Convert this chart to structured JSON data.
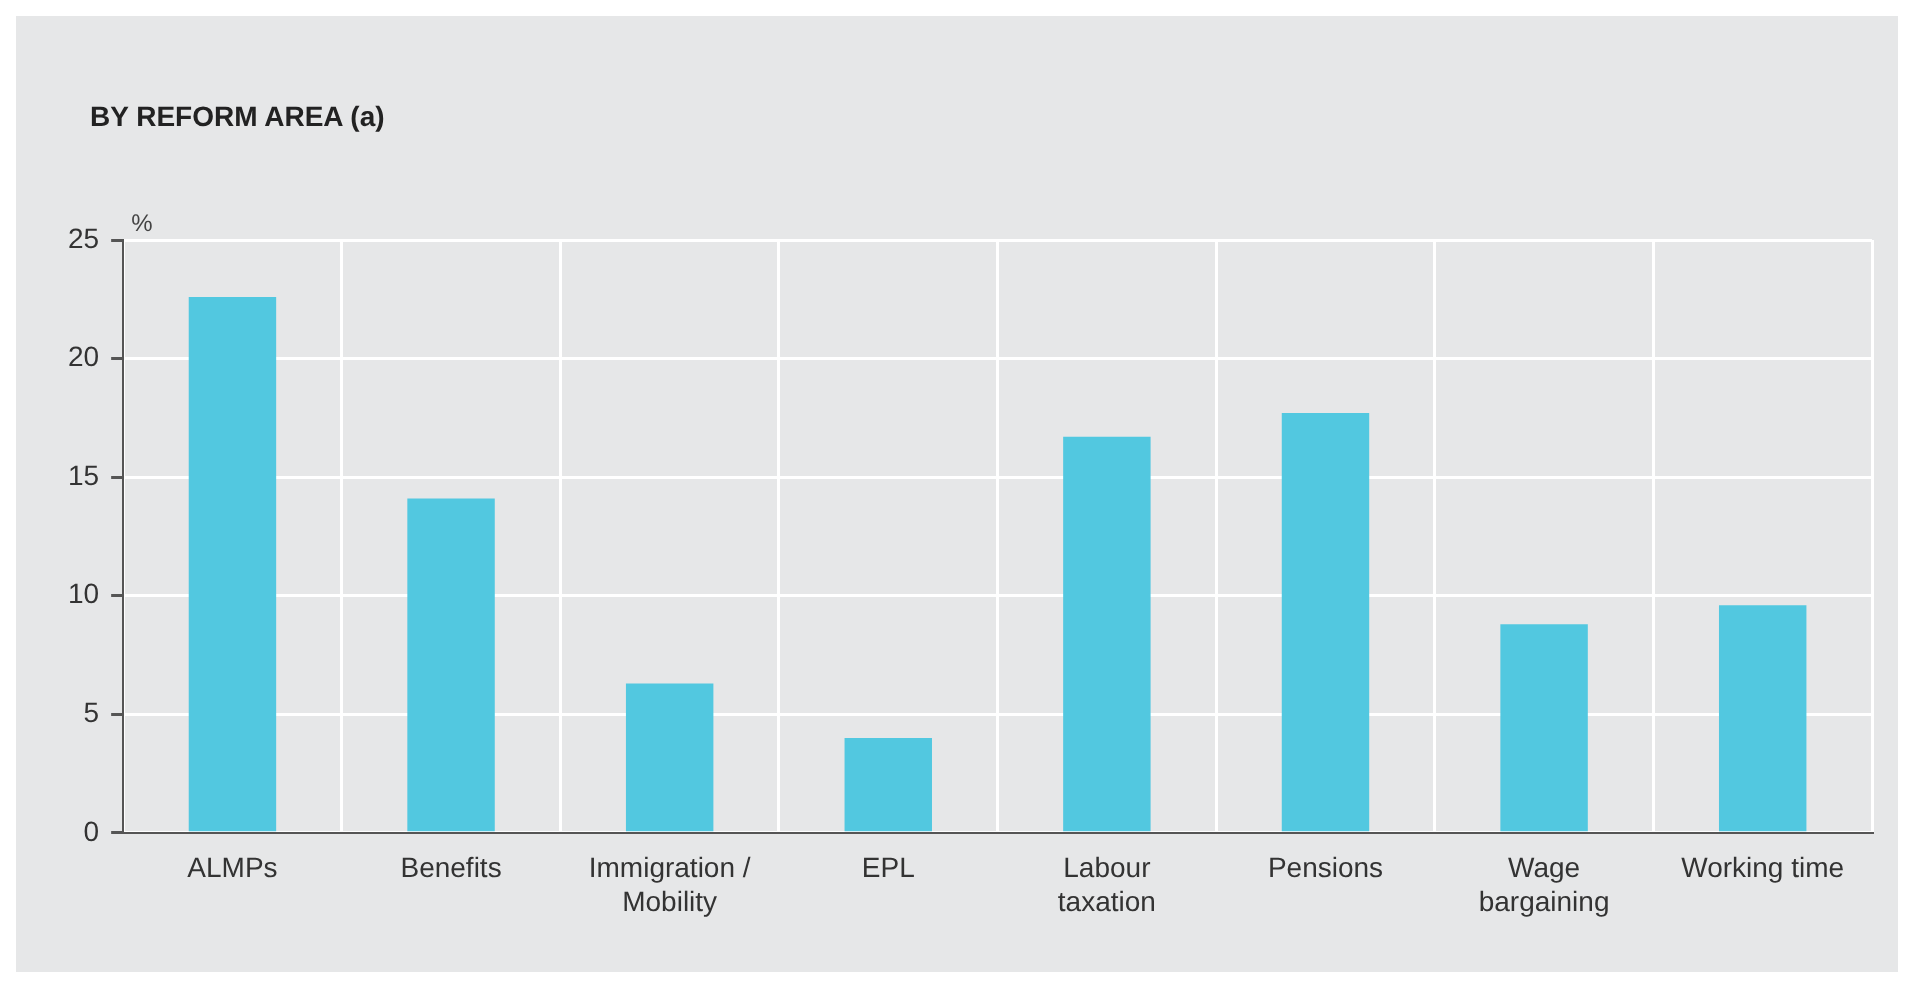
{
  "chart_data": {
    "type": "bar",
    "title": "BY REFORM AREA (a)",
    "ylabel": "%",
    "categories": [
      "ALMPs",
      "Benefits",
      "Immigration / Mobility",
      "EPL",
      "Labour taxation",
      "Pensions",
      "Wage bargaining",
      "Working time"
    ],
    "values": [
      22.6,
      14.1,
      6.3,
      4.0,
      16.7,
      17.7,
      8.8,
      9.6
    ],
    "color": "#52c8e0",
    "ylim": [
      0,
      25
    ],
    "yticks": [
      0,
      5,
      10,
      15,
      20,
      25
    ],
    "grid": true
  }
}
